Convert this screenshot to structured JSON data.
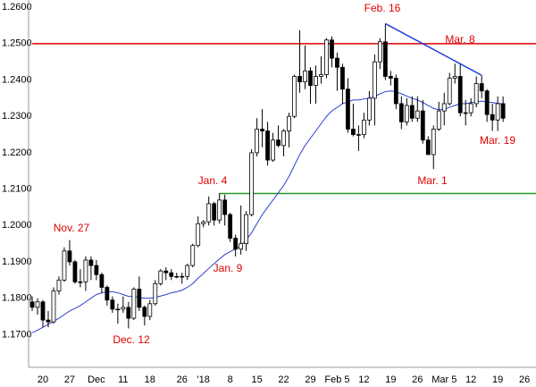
{
  "chart_data": {
    "type": "candlestick",
    "categories": [
      null,
      null,
      "20",
      null,
      null,
      null,
      null,
      "27",
      null,
      null,
      null,
      null,
      "Dec",
      null,
      null,
      null,
      null,
      "11",
      null,
      null,
      null,
      null,
      "18",
      null,
      null,
      null,
      null,
      null,
      "26",
      null,
      null,
      null,
      "'18",
      null,
      null,
      null,
      null,
      "8",
      null,
      null,
      null,
      null,
      "15",
      null,
      null,
      null,
      null,
      "22",
      null,
      null,
      null,
      null,
      "29",
      null,
      null,
      null,
      null,
      "Feb 5",
      null,
      null,
      null,
      null,
      "12",
      null,
      null,
      null,
      null,
      "19",
      null,
      null,
      null,
      null,
      "26",
      null,
      null,
      null,
      null,
      "Mar 5",
      null,
      null,
      null,
      null,
      "12",
      null,
      null,
      null,
      null,
      "19",
      null,
      null,
      null,
      null,
      "26",
      null
    ],
    "open": [
      1.179,
      1.1775,
      1.179,
      1.174,
      1.1735,
      1.182,
      1.185,
      1.193,
      1.19,
      1.1845,
      1.1845,
      1.1905,
      1.189,
      1.1865,
      1.183,
      1.1795,
      1.177,
      1.177,
      1.1775,
      1.1745,
      1.1825,
      1.1775,
      1.175,
      1.1785,
      1.184,
      1.1875,
      1.187,
      1.186,
      1.186,
      1.186,
      1.189,
      1.1945,
      1.2005,
      1.201,
      1.206,
      1.2015,
      1.207,
      1.203,
      1.1965,
      1.1935,
      1.195,
      1.203,
      1.22,
      1.2265,
      1.226,
      1.218,
      1.2235,
      1.222,
      1.226,
      1.23,
      1.241,
      1.2395,
      1.2425,
      1.2385,
      1.241,
      1.2415,
      1.251,
      1.246,
      1.2435,
      1.2375,
      1.2265,
      1.225,
      1.225,
      1.229,
      1.235,
      1.245,
      1.2505,
      1.241,
      1.2405,
      1.2335,
      1.2285,
      1.233,
      1.2295,
      1.2315,
      1.2235,
      1.2195,
      1.2265,
      1.2315,
      1.2335,
      1.2405,
      1.241,
      1.231,
      1.231,
      1.2335,
      1.239,
      1.237,
      1.2305,
      1.229,
      1.2335,
      null,
      null,
      null,
      null,
      null
    ],
    "high": [
      1.1805,
      1.18,
      1.1795,
      1.1765,
      1.183,
      1.186,
      1.194,
      1.196,
      1.1905,
      1.188,
      1.1915,
      1.1915,
      1.1905,
      1.187,
      1.1835,
      1.1805,
      1.1785,
      1.1805,
      1.179,
      1.183,
      1.186,
      1.178,
      1.1795,
      1.185,
      1.188,
      1.1885,
      1.188,
      1.187,
      1.187,
      1.1895,
      1.195,
      1.2025,
      1.2015,
      1.208,
      1.2065,
      1.2089,
      1.2085,
      1.2035,
      1.1975,
      1.2055,
      1.204,
      1.221,
      1.2295,
      1.232,
      1.2285,
      1.2255,
      1.2275,
      1.2265,
      1.231,
      1.2415,
      1.2537,
      1.2495,
      1.2435,
      1.244,
      1.2465,
      1.2515,
      1.252,
      1.2475,
      1.2445,
      1.2405,
      1.2335,
      1.2275,
      1.231,
      1.237,
      1.247,
      1.2515,
      1.2555,
      1.2425,
      1.2415,
      1.2355,
      1.235,
      1.2355,
      1.2355,
      1.2345,
      1.2245,
      1.2275,
      1.234,
      1.2365,
      1.242,
      1.2445,
      1.2446,
      1.2345,
      1.235,
      1.241,
      1.2413,
      1.2375,
      1.2335,
      1.2355,
      1.2355,
      null,
      null,
      null,
      null,
      null
    ],
    "low": [
      1.1765,
      1.1755,
      1.172,
      1.172,
      1.173,
      1.181,
      1.1845,
      1.189,
      1.184,
      1.183,
      1.182,
      1.185,
      1.185,
      1.1815,
      1.178,
      1.176,
      1.173,
      1.176,
      1.1717,
      1.174,
      1.1765,
      1.1725,
      1.174,
      1.178,
      1.1835,
      1.185,
      1.185,
      1.1855,
      1.184,
      1.185,
      1.1885,
      1.194,
      1.1995,
      1.2,
      1.2,
      1.2005,
      1.2,
      1.1955,
      1.1915,
      1.192,
      1.193,
      1.2025,
      1.219,
      1.2215,
      1.2165,
      1.2175,
      1.2215,
      1.219,
      1.2215,
      1.2295,
      1.2365,
      1.2375,
      1.2335,
      1.2335,
      1.239,
      1.2405,
      1.2435,
      1.237,
      1.2335,
      1.2255,
      1.2245,
      1.2205,
      1.224,
      1.2275,
      1.2275,
      1.243,
      1.24,
      1.2385,
      1.232,
      1.2265,
      1.2275,
      1.2285,
      1.2285,
      1.2225,
      1.2195,
      1.2155,
      1.226,
      1.2275,
      1.233,
      1.239,
      1.23,
      1.2275,
      1.23,
      1.2325,
      1.235,
      1.2285,
      1.226,
      1.226,
      1.2285,
      null,
      null,
      null,
      null,
      null
    ],
    "close": [
      1.1775,
      1.179,
      1.174,
      1.1735,
      1.182,
      1.185,
      1.193,
      1.19,
      1.1845,
      1.1845,
      1.1905,
      1.189,
      1.1865,
      1.183,
      1.1795,
      1.177,
      1.177,
      1.1775,
      1.1745,
      1.1825,
      1.1775,
      1.175,
      1.1785,
      1.184,
      1.1875,
      1.187,
      1.186,
      1.186,
      1.186,
      1.189,
      1.1945,
      1.2005,
      1.201,
      1.206,
      1.2015,
      1.207,
      1.203,
      1.1965,
      1.1935,
      1.195,
      1.203,
      1.22,
      1.2265,
      1.226,
      1.218,
      1.2235,
      1.222,
      1.226,
      1.23,
      1.241,
      1.2395,
      1.2425,
      1.2385,
      1.241,
      1.2415,
      1.251,
      1.246,
      1.2435,
      1.2375,
      1.2265,
      1.225,
      1.225,
      1.229,
      1.235,
      1.245,
      1.2505,
      1.241,
      1.2405,
      1.2335,
      1.2285,
      1.233,
      1.2295,
      1.2315,
      1.2235,
      1.2195,
      1.2265,
      1.2315,
      1.2335,
      1.2405,
      1.241,
      1.231,
      1.231,
      1.2335,
      1.239,
      1.237,
      1.2305,
      1.229,
      1.2335,
      1.2295,
      null,
      null,
      null,
      null,
      null
    ],
    "up_color": "#ffffff",
    "down_color": "#000000",
    "wick_color": "#000000",
    "moving_average": {
      "color": "#2a3fd0",
      "values": [
        1.1705,
        1.1712,
        1.172,
        1.1728,
        1.1736,
        1.1745,
        1.1755,
        1.1765,
        1.1772,
        1.178,
        1.179,
        1.18,
        1.181,
        1.1815,
        1.1818,
        1.1818,
        1.1815,
        1.181,
        1.1805,
        1.1805,
        1.1802,
        1.18,
        1.18,
        1.1802,
        1.1806,
        1.181,
        1.1815,
        1.1818,
        1.1822,
        1.183,
        1.184,
        1.1855,
        1.1868,
        1.1882,
        1.1895,
        1.1908,
        1.192,
        1.1928,
        1.1935,
        1.1945,
        1.196,
        1.198,
        1.2005,
        1.203,
        1.205,
        1.207,
        1.209,
        1.211,
        1.2135,
        1.2165,
        1.2195,
        1.222,
        1.224,
        1.226,
        1.228,
        1.23,
        1.2315,
        1.2325,
        1.2335,
        1.234,
        1.2345,
        1.2345,
        1.2348,
        1.235,
        1.2355,
        1.2362,
        1.2368,
        1.237,
        1.2368,
        1.2362,
        1.2356,
        1.235,
        1.2345,
        1.2338,
        1.233,
        1.2322,
        1.2318,
        1.232,
        1.2325,
        1.233,
        1.2335,
        1.2335,
        1.2338,
        1.234,
        1.2342,
        1.234,
        1.2338,
        1.2336,
        1.2334,
        null,
        null,
        null,
        null,
        null
      ]
    },
    "levels": [
      {
        "value": 1.25,
        "color": "#e00000"
      },
      {
        "value": 1.2088,
        "color": "#1e9a1e"
      }
    ],
    "trendline": {
      "color": "#1f3fd6",
      "values": [
        1.2555,
        1.2413
      ]
    },
    "annotations": [
      "Feb. 16",
      "Mar. 8",
      "Jan. 4",
      "Nov. 27",
      "Jan. 9",
      "Dec. 12",
      "Mar. 1",
      "Mar. 19"
    ],
    "annotation_color": "#e00000",
    "ylim": [
      1.161,
      1.262
    ],
    "yticks": [
      {
        "value": 1.26,
        "label": "1.2600"
      },
      {
        "value": 1.25,
        "label": "1.2500"
      },
      {
        "value": 1.24,
        "label": "1.2400"
      },
      {
        "value": 1.23,
        "label": "1.2300"
      },
      {
        "value": 1.22,
        "label": "1.2200"
      },
      {
        "value": 1.21,
        "label": "1.2100"
      },
      {
        "value": 1.2,
        "label": "1.2000"
      },
      {
        "value": 1.19,
        "label": "1.1900"
      },
      {
        "value": 1.18,
        "label": "1.1800"
      },
      {
        "value": 1.17,
        "label": "1.1700"
      }
    ],
    "grid": false
  }
}
